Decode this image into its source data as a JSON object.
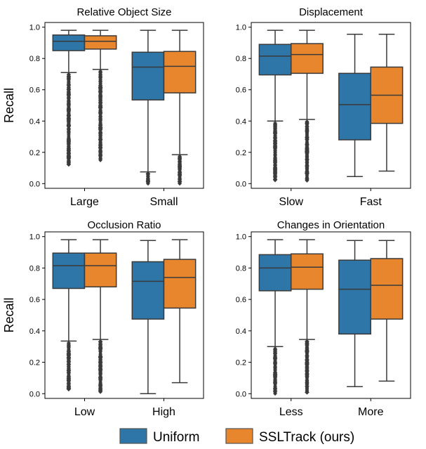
{
  "chart_data": [
    {
      "type": "box",
      "title": "Relative Object Size",
      "ylabel": "Recall",
      "categories": [
        "Large",
        "Small"
      ],
      "ylim": [
        -0.03,
        1.03
      ],
      "yticks": [
        "0.0",
        "0.2",
        "0.4",
        "0.6",
        "0.8",
        "1.0"
      ],
      "series": [
        {
          "name": "Uniform",
          "color": "#2e75a8",
          "boxes": [
            {
              "category": "Large",
              "q1": 0.85,
              "median": 0.91,
              "q3": 0.95,
              "whisker_low": 0.71,
              "whisker_high": 0.98,
              "outlier_low": 0.12
            },
            {
              "category": "Small",
              "q1": 0.535,
              "median": 0.745,
              "q3": 0.84,
              "whisker_low": 0.075,
              "whisker_high": 0.98,
              "outlier_low": 0.0
            }
          ]
        },
        {
          "name": "SSLTrack (ours)",
          "color": "#e8862d",
          "boxes": [
            {
              "category": "Large",
              "q1": 0.86,
              "median": 0.91,
              "q3": 0.945,
              "whisker_low": 0.73,
              "whisker_high": 0.98,
              "outlier_low": 0.15
            },
            {
              "category": "Small",
              "q1": 0.58,
              "median": 0.75,
              "q3": 0.845,
              "whisker_low": 0.185,
              "whisker_high": 0.98,
              "outlier_low": 0.0
            }
          ]
        }
      ]
    },
    {
      "type": "box",
      "title": "Displacement",
      "ylabel": "",
      "categories": [
        "Slow",
        "Fast"
      ],
      "ylim": [
        -0.03,
        1.03
      ],
      "yticks": [
        "0.0",
        "0.2",
        "0.4",
        "0.6",
        "0.8",
        "1.0"
      ],
      "series": [
        {
          "name": "Uniform",
          "color": "#2e75a8",
          "boxes": [
            {
              "category": "Slow",
              "q1": 0.695,
              "median": 0.815,
              "q3": 0.89,
              "whisker_low": 0.4,
              "whisker_high": 0.98,
              "outlier_low": 0.02
            },
            {
              "category": "Fast",
              "q1": 0.28,
              "median": 0.505,
              "q3": 0.705,
              "whisker_low": 0.045,
              "whisker_high": 0.955,
              "outlier_low": null
            }
          ]
        },
        {
          "name": "SSLTrack (ours)",
          "color": "#e8862d",
          "boxes": [
            {
              "category": "Slow",
              "q1": 0.705,
              "median": 0.825,
              "q3": 0.895,
              "whisker_low": 0.41,
              "whisker_high": 0.98,
              "outlier_low": 0.02
            },
            {
              "category": "Fast",
              "q1": 0.385,
              "median": 0.565,
              "q3": 0.745,
              "whisker_low": 0.08,
              "whisker_high": 0.955,
              "outlier_low": null
            }
          ]
        }
      ]
    },
    {
      "type": "box",
      "title": "Occlusion Ratio",
      "ylabel": "Recall",
      "categories": [
        "Low",
        "High"
      ],
      "ylim": [
        -0.03,
        1.03
      ],
      "yticks": [
        "0.0",
        "0.2",
        "0.4",
        "0.6",
        "0.8",
        "1.0"
      ],
      "series": [
        {
          "name": "Uniform",
          "color": "#2e75a8",
          "boxes": [
            {
              "category": "Low",
              "q1": 0.67,
              "median": 0.815,
              "q3": 0.895,
              "whisker_low": 0.335,
              "whisker_high": 0.98,
              "outlier_low": 0.03
            },
            {
              "category": "High",
              "q1": 0.475,
              "median": 0.715,
              "q3": 0.84,
              "whisker_low": 0.0,
              "whisker_high": 0.975,
              "outlier_low": null
            }
          ]
        },
        {
          "name": "SSLTrack (ours)",
          "color": "#e8862d",
          "boxes": [
            {
              "category": "Low",
              "q1": 0.68,
              "median": 0.815,
              "q3": 0.895,
              "whisker_low": 0.345,
              "whisker_high": 0.98,
              "outlier_low": 0.01
            },
            {
              "category": "High",
              "q1": 0.545,
              "median": 0.74,
              "q3": 0.855,
              "whisker_low": 0.07,
              "whisker_high": 0.98,
              "outlier_low": null
            }
          ]
        }
      ]
    },
    {
      "type": "box",
      "title": "Changes in Orientation",
      "ylabel": "",
      "categories": [
        "Less",
        "More"
      ],
      "ylim": [
        -0.03,
        1.03
      ],
      "yticks": [
        "0.0",
        "0.2",
        "0.4",
        "0.6",
        "0.8",
        "1.0"
      ],
      "series": [
        {
          "name": "Uniform",
          "color": "#2e75a8",
          "boxes": [
            {
              "category": "Less",
              "q1": 0.655,
              "median": 0.8,
              "q3": 0.885,
              "whisker_low": 0.3,
              "whisker_high": 0.98,
              "outlier_low": 0.0
            },
            {
              "category": "More",
              "q1": 0.38,
              "median": 0.665,
              "q3": 0.85,
              "whisker_low": 0.045,
              "whisker_high": 0.975,
              "outlier_low": null
            }
          ]
        },
        {
          "name": "SSLTrack (ours)",
          "color": "#e8862d",
          "boxes": [
            {
              "category": "Less",
              "q1": 0.665,
              "median": 0.805,
              "q3": 0.89,
              "whisker_low": 0.345,
              "whisker_high": 0.98,
              "outlier_low": 0.01
            },
            {
              "category": "More",
              "q1": 0.475,
              "median": 0.69,
              "q3": 0.86,
              "whisker_low": 0.08,
              "whisker_high": 0.975,
              "outlier_low": null
            }
          ]
        }
      ]
    }
  ],
  "legend": [
    {
      "label": "Uniform",
      "color": "#2e75a8"
    },
    {
      "label": "SSLTrack (ours)",
      "color": "#e8862d"
    }
  ],
  "colors": {
    "edge": "#3a3a3a",
    "outlier": "#3a3a3a"
  }
}
